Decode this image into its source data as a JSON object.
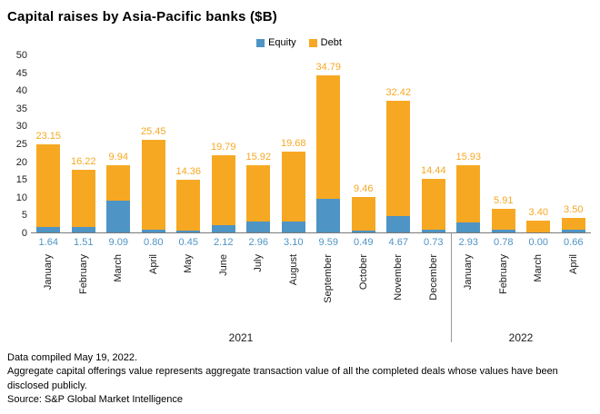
{
  "title": "Capital raises by Asia-Pacific banks ($B)",
  "legend": [
    {
      "label": "Equity",
      "color": "#4E94C4"
    },
    {
      "label": "Debt",
      "color": "#F7A823"
    }
  ],
  "chart_data": {
    "type": "bar",
    "stacked": true,
    "categories": [
      "January",
      "February",
      "March",
      "April",
      "May",
      "June",
      "July",
      "August",
      "September",
      "October",
      "November",
      "December",
      "January",
      "February",
      "March",
      "April"
    ],
    "groups": [
      {
        "label": "2021",
        "months": 12
      },
      {
        "label": "2022",
        "months": 4
      }
    ],
    "series": [
      {
        "name": "Equity",
        "color": "#4E94C4",
        "values": [
          1.64,
          1.51,
          9.09,
          0.8,
          0.45,
          2.12,
          2.96,
          3.1,
          9.59,
          0.49,
          4.67,
          0.73,
          2.93,
          0.78,
          0.0,
          0.66
        ]
      },
      {
        "name": "Debt",
        "color": "#F7A823",
        "values": [
          23.15,
          16.22,
          9.94,
          25.45,
          14.36,
          19.79,
          15.92,
          19.68,
          34.79,
          9.46,
          32.42,
          14.44,
          15.93,
          5.91,
          3.4,
          3.5
        ]
      }
    ],
    "ylim": [
      0,
      50
    ],
    "yticks": [
      0,
      5,
      10,
      15,
      20,
      25,
      30,
      35,
      40,
      45,
      50
    ],
    "grid": false,
    "legend_position": "top",
    "value_labels": {
      "above_bar": "Debt",
      "below_axis": "Equity"
    }
  },
  "footer": {
    "line1": "Data compiled May 19, 2022.",
    "line2": "Aggregate capital offerings value represents aggregate transaction value of all the completed deals whose values have been disclosed publicly.",
    "line3": "Source: S&P Global Market Intelligence"
  }
}
